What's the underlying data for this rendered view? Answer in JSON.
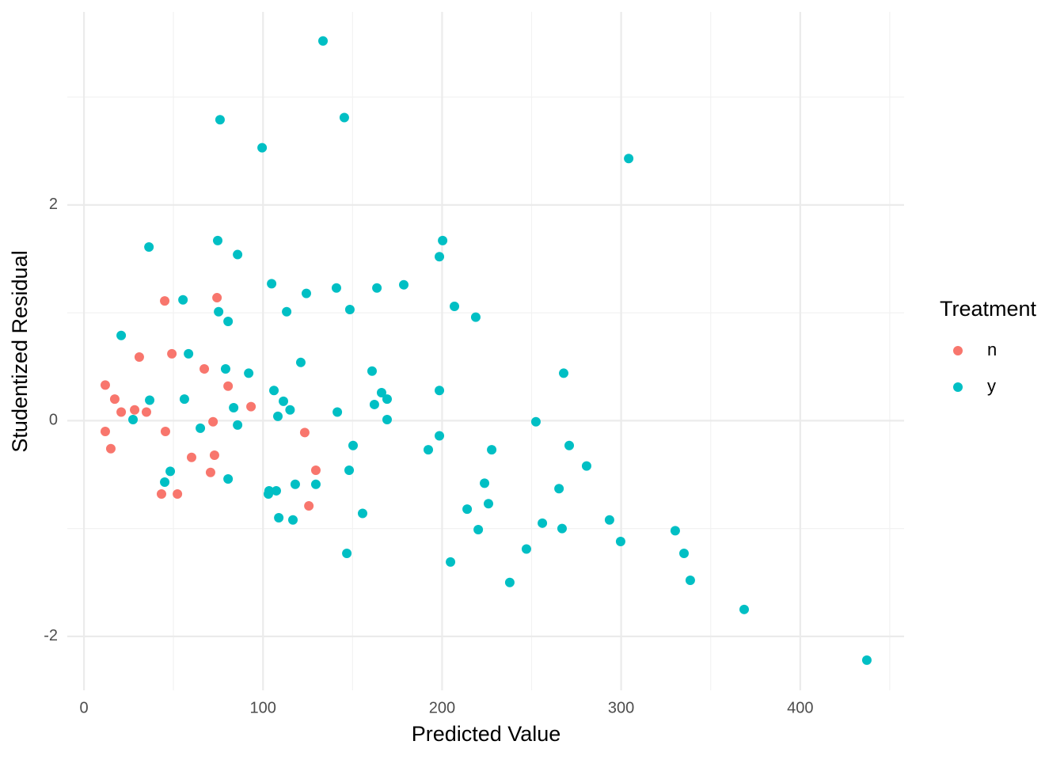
{
  "chart_data": {
    "type": "scatter",
    "x_label": "Predicted Value",
    "y_label": "Studentized Residual",
    "legend_title": "Treatment",
    "legend_position": "right",
    "grid": true,
    "xlim": [
      -9.3,
      458
    ],
    "ylim": [
      -2.5,
      3.79
    ],
    "xticks": [
      0,
      100,
      200,
      300,
      400
    ],
    "yticks": [
      -2,
      0,
      2
    ],
    "x_minor_grid": [
      50,
      150,
      250,
      350,
      450
    ],
    "y_minor_grid": [
      -1,
      1,
      3
    ],
    "series": [
      {
        "name": "n",
        "color": "#F8766D",
        "x": [
          11.9,
          11.9,
          17.2,
          15.0,
          20.8,
          30.9,
          28.3,
          34.9,
          45.1,
          45.5,
          49.1,
          43.3,
          52.2,
          60.1,
          67.2,
          70.7,
          72.1,
          72.9,
          74.3,
          80.5,
          93.3,
          123.3,
          125.6,
          129.5
        ],
        "values": [
          0.33,
          -0.1,
          0.2,
          -0.26,
          0.08,
          0.59,
          0.1,
          0.08,
          1.11,
          -0.1,
          0.62,
          -0.68,
          -0.68,
          -0.34,
          0.48,
          -0.48,
          -0.01,
          -0.32,
          1.14,
          0.32,
          0.13,
          -0.11,
          -0.79,
          -0.46
        ]
      },
      {
        "name": "y",
        "color": "#00BFC4",
        "x": [
          133.5,
          76.0,
          145.4,
          99.5,
          304.2,
          74.7,
          200.3,
          36.3,
          85.8,
          198.5,
          104.8,
          178.6,
          141.0,
          163.6,
          124.2,
          55.3,
          206.9,
          148.5,
          113.2,
          75.2,
          218.8,
          80.5,
          20.8,
          58.4,
          121.1,
          79.1,
          160.9,
          267.9,
          92.0,
          106.1,
          198.5,
          166.2,
          169.3,
          56.1,
          36.7,
          111.4,
          162.2,
          83.6,
          115.1,
          141.5,
          108.3,
          27.4,
          169.3,
          252.4,
          85.8,
          65.0,
          198.5,
          271.0,
          150.3,
          192.3,
          227.7,
          280.7,
          48.2,
          148.1,
          45.1,
          80.5,
          118.0,
          129.5,
          223.7,
          103.4,
          107.4,
          103.0,
          265.3,
          225.9,
          214.0,
          108.8,
          116.7,
          155.6,
          256.0,
          293.5,
          220.2,
          267.0,
          330.2,
          299.7,
          247.1,
          335.1,
          146.8,
          204.7,
          237.8,
          338.6,
          368.7,
          437.2
        ],
        "values": [
          3.52,
          2.79,
          2.81,
          2.53,
          2.43,
          1.67,
          1.67,
          1.61,
          1.54,
          1.52,
          1.27,
          1.26,
          1.23,
          1.23,
          1.18,
          1.12,
          1.06,
          1.03,
          1.01,
          1.01,
          0.96,
          0.92,
          0.79,
          0.62,
          0.54,
          0.48,
          0.46,
          0.44,
          0.44,
          0.28,
          0.28,
          0.26,
          0.2,
          0.2,
          0.19,
          0.18,
          0.15,
          0.12,
          0.1,
          0.08,
          0.04,
          0.01,
          0.01,
          -0.01,
          -0.04,
          -0.07,
          -0.14,
          -0.23,
          -0.23,
          -0.27,
          -0.27,
          -0.42,
          -0.47,
          -0.46,
          -0.57,
          -0.54,
          -0.59,
          -0.59,
          -0.58,
          -0.65,
          -0.65,
          -0.68,
          -0.63,
          -0.77,
          -0.82,
          -0.9,
          -0.92,
          -0.86,
          -0.95,
          -0.92,
          -1.01,
          -1.0,
          -1.02,
          -1.12,
          -1.19,
          -1.23,
          -1.23,
          -1.31,
          -1.5,
          -1.48,
          -1.75,
          -2.22
        ]
      }
    ]
  }
}
